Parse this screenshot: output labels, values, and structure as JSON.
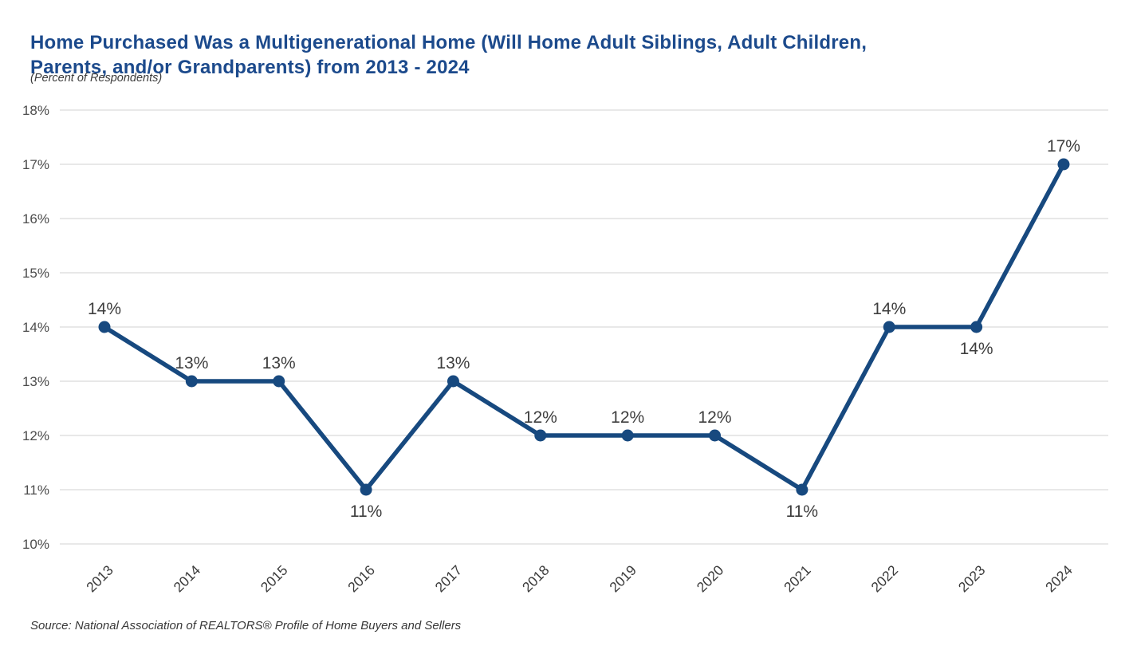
{
  "header": {
    "title_full": "Home Purchased Was a Multigenerational Home (Will Home Adult Siblings, Adult Children, Parents, and/or Grandparents) from 2013 - 2024",
    "title_line1": "Home Purchased Was a Multigenerational Home (Will Home Adult Siblings, Adult Children,",
    "title_line2": "Parents, and/or Grandparents) from 2013 - 2024",
    "subtitle": "(Percent of Respondents)"
  },
  "footer": {
    "source": "Source: National Association of REALTORS® Profile of Home Buyers and Sellers"
  },
  "colors": {
    "background": "#FFFFFF",
    "line": "#17497F",
    "marker": "#17497F",
    "title_text": "#1C4A8C",
    "gridline": "#D9D9D9",
    "y_tick_label": "#4C4C4C",
    "x_tick_label": "#3A3A3A",
    "data_label": "#3E3E3E"
  },
  "chart_data": {
    "type": "line",
    "title": "Home Purchased Was a Multigenerational Home (Will Home Adult Siblings, Adult Children, Parents, and/or Grandparents) from 2013 - 2024",
    "subtitle": "(Percent of Respondents)",
    "categories": [
      "2013",
      "2014",
      "2015",
      "2016",
      "2017",
      "2018",
      "2019",
      "2020",
      "2021",
      "2022",
      "2023",
      "2024"
    ],
    "values": [
      14,
      13,
      13,
      11,
      13,
      12,
      12,
      12,
      11,
      14,
      14,
      17
    ],
    "data_labels": [
      "14%",
      "13%",
      "13%",
      "11%",
      "13%",
      "12%",
      "12%",
      "12%",
      "11%",
      "14%",
      "14%",
      "17%"
    ],
    "data_label_positions": [
      "above",
      "above",
      "above",
      "below",
      "above",
      "above",
      "above",
      "above",
      "below",
      "above",
      "below",
      "above"
    ],
    "y_ticks": [
      18,
      17,
      16,
      15,
      14,
      13,
      12,
      11,
      10
    ],
    "y_tick_labels": [
      "18%",
      "17%",
      "16%",
      "15%",
      "14%",
      "13%",
      "12%",
      "11%",
      "10%"
    ],
    "ylim": [
      10,
      18
    ],
    "xlabel": "",
    "ylabel": "",
    "grid": "horizontal",
    "legend": false,
    "x_tick_rotation_deg": -45,
    "series_name": "Percent of Respondents"
  }
}
